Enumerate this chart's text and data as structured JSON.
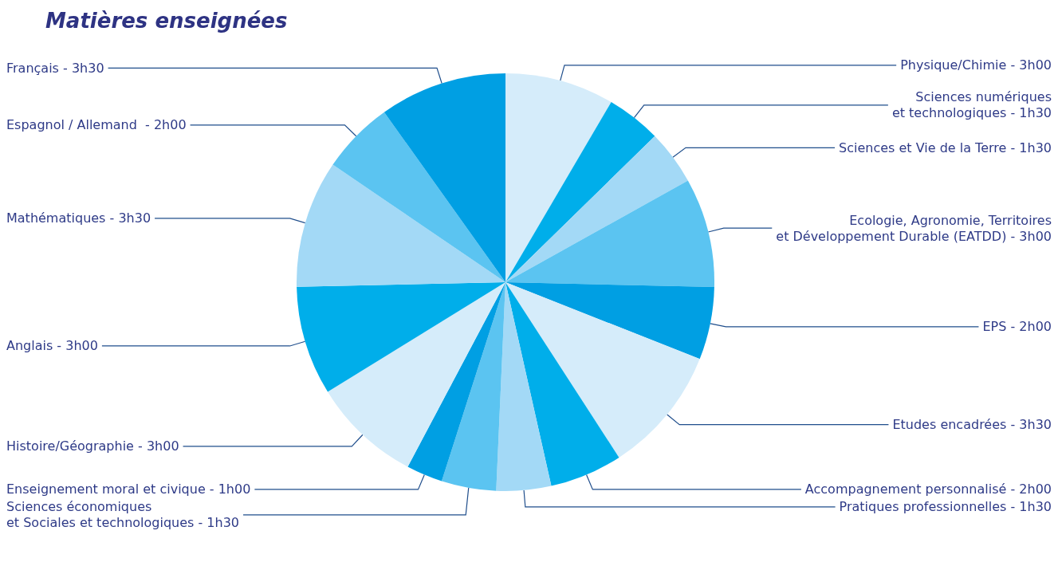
{
  "chart_data": {
    "type": "pie",
    "title": "Matières enseignées",
    "categories": [
      "Physique/Chimie - 3h00",
      "Sciences numériques\net technologiques - 1h30",
      "Sciences et Vie de la Terre - 1h30",
      "Ecologie, Agronomie, Territoires\net Développement Durable (EATDD) - 3h00",
      "EPS - 2h00",
      "Etudes encadrées - 3h30",
      "Accompagnement personnalisé - 2h00",
      "Pratiques professionnelles - 1h30",
      "Sciences économiques\net Sociales et technologiques - 1h30",
      "Enseignement moral et civique - 1h00",
      "Histoire/Géographie - 3h00",
      "Anglais - 3h00",
      "Mathématiques - 3h30",
      "Espagnol / Allemand  - 2h00",
      "Français - 3h30"
    ],
    "values": [
      8.45,
      4.23,
      4.23,
      8.45,
      5.63,
      9.86,
      5.63,
      4.23,
      4.23,
      2.81,
      8.45,
      8.45,
      9.86,
      5.63,
      9.86
    ],
    "colors": [
      "#d5ecfa",
      "#00aeea",
      "#a3d9f6",
      "#5bc4f1",
      "#009fe3",
      "#d5ecfa",
      "#00aeea",
      "#a3d9f6",
      "#5bc4f1",
      "#009fe3",
      "#d5ecfa",
      "#00aeea",
      "#a3d9f6",
      "#5bc4f1",
      "#009fe3"
    ],
    "legend": false
  }
}
